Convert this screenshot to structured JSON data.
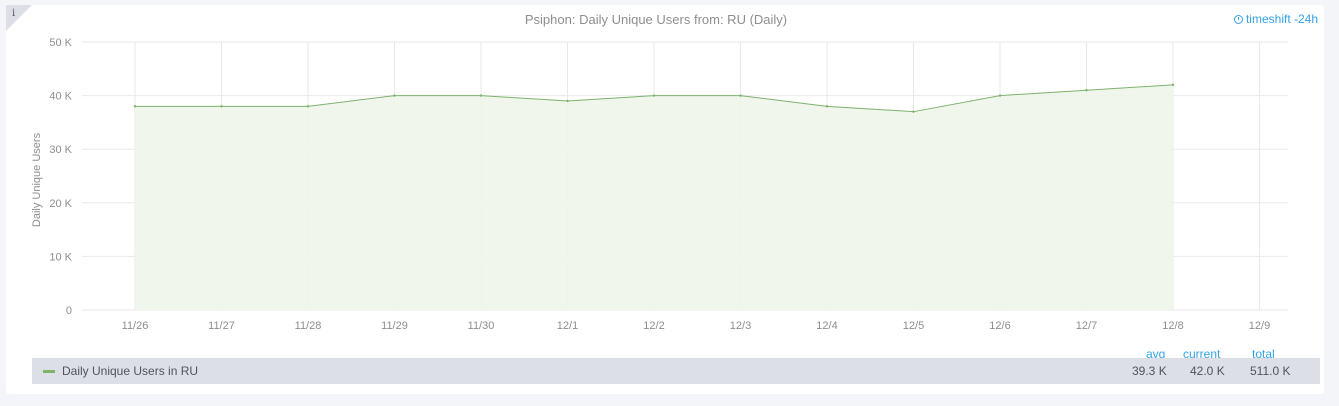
{
  "panel": {
    "info_glyph": "i",
    "title": "Psiphon: Daily Unique Users from: RU (Daily)",
    "timeshift_label": "timeshift -24h",
    "timeshift_icon": "clock-icon"
  },
  "colors": {
    "series": "#7eb26d",
    "fill": "#eef5e9",
    "accent": "#33a2e5",
    "grid": "#e9e9e9"
  },
  "chart_data": {
    "type": "area",
    "title": "Psiphon: Daily Unique Users from: RU (Daily)",
    "ylabel": "Daily Unique Users",
    "xlabel": "",
    "ylim": [
      0,
      50000
    ],
    "y_ticks": [
      0,
      10000,
      20000,
      30000,
      40000,
      50000
    ],
    "y_tick_labels": [
      "0",
      "10 K",
      "20 K",
      "30 K",
      "40 K",
      "50 K"
    ],
    "x_ticks": [
      "11/26",
      "11/27",
      "11/28",
      "11/29",
      "11/30",
      "12/1",
      "12/2",
      "12/3",
      "12/4",
      "12/5",
      "12/6",
      "12/7",
      "12/8",
      "12/9"
    ],
    "grid": true,
    "legend": "bottom",
    "series": [
      {
        "name": "Daily Unique Users in RU",
        "x": [
          "11/26",
          "11/27",
          "11/28",
          "11/29",
          "11/30",
          "12/1",
          "12/2",
          "12/3",
          "12/4",
          "12/5",
          "12/6",
          "12/7",
          "12/8"
        ],
        "values": [
          38000,
          38000,
          38000,
          40000,
          40000,
          39000,
          40000,
          40000,
          38000,
          37000,
          40000,
          41000,
          42000
        ]
      }
    ]
  },
  "legend": {
    "headers": {
      "avg": "avg",
      "current": "current",
      "total": "total"
    },
    "rows": [
      {
        "name": "Daily Unique Users in RU",
        "avg": "39.3 K",
        "current": "42.0 K",
        "total": "511.0 K"
      }
    ]
  }
}
